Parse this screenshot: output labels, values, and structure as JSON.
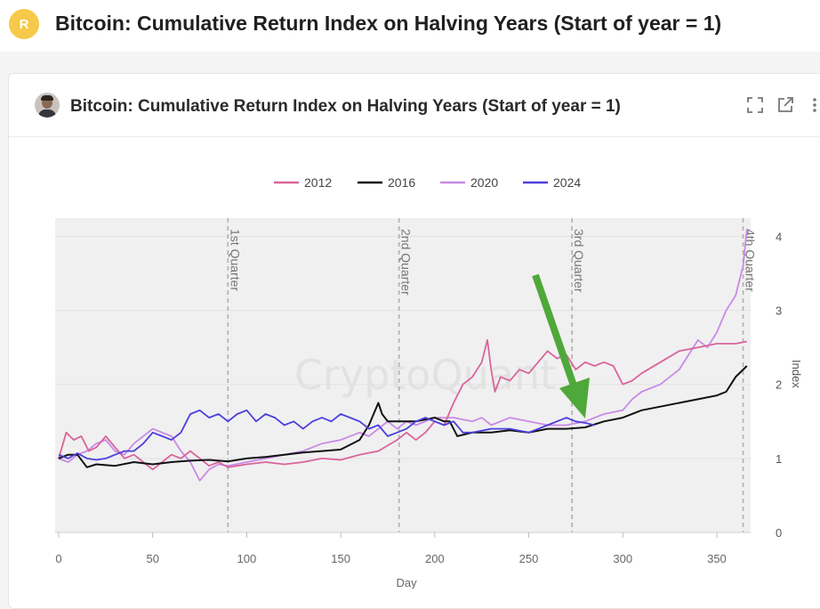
{
  "page": {
    "title": "Bitcoin: Cumulative Return Index on Halving Years (Start of year = 1)",
    "avatar_letter": "R"
  },
  "card": {
    "title": "Bitcoin: Cumulative Return Index on Halving Years (Start of year = 1)",
    "icons": [
      "fullscreen-icon",
      "open-external-icon",
      "more-icon"
    ]
  },
  "colors": {
    "2012": "#d9649b",
    "2016": "#111111",
    "2020": "#c98ae6",
    "2024": "#4b3fe0",
    "arrow": "#4fa83a",
    "plot_bg": "#f0f0f0"
  },
  "chart_data": {
    "type": "line",
    "xlabel": "Day",
    "ylabel": "Index",
    "xlim": [
      0,
      368
    ],
    "ylim": [
      0,
      4.15
    ],
    "x_ticks": [
      0,
      50,
      100,
      150,
      200,
      250,
      300,
      350
    ],
    "y_ticks": [
      0,
      1,
      2,
      3,
      4
    ],
    "watermark": "CryptoQuant",
    "legend": {
      "position": "top-center"
    },
    "quarter_lines": [
      {
        "x": 90,
        "label": "1st Quarter"
      },
      {
        "x": 181,
        "label": "2nd Quarter"
      },
      {
        "x": 273,
        "label": "3rd Quarter"
      },
      {
        "x": 364,
        "label": "4th Quarter"
      }
    ],
    "series": [
      {
        "name": "2012",
        "points": [
          [
            0,
            1.0
          ],
          [
            4,
            1.35
          ],
          [
            8,
            1.25
          ],
          [
            12,
            1.3
          ],
          [
            16,
            1.1
          ],
          [
            20,
            1.15
          ],
          [
            25,
            1.3
          ],
          [
            30,
            1.15
          ],
          [
            35,
            1.0
          ],
          [
            40,
            1.05
          ],
          [
            45,
            0.95
          ],
          [
            50,
            0.85
          ],
          [
            55,
            0.95
          ],
          [
            60,
            1.05
          ],
          [
            65,
            1.0
          ],
          [
            70,
            1.1
          ],
          [
            75,
            1.0
          ],
          [
            80,
            0.9
          ],
          [
            85,
            0.95
          ],
          [
            90,
            0.88
          ],
          [
            100,
            0.92
          ],
          [
            110,
            0.95
          ],
          [
            120,
            0.92
          ],
          [
            130,
            0.95
          ],
          [
            140,
            1.0
          ],
          [
            150,
            0.98
          ],
          [
            160,
            1.05
          ],
          [
            170,
            1.1
          ],
          [
            180,
            1.25
          ],
          [
            185,
            1.35
          ],
          [
            190,
            1.25
          ],
          [
            195,
            1.35
          ],
          [
            200,
            1.5
          ],
          [
            205,
            1.45
          ],
          [
            210,
            1.75
          ],
          [
            215,
            2.0
          ],
          [
            220,
            2.1
          ],
          [
            225,
            2.3
          ],
          [
            228,
            2.6
          ],
          [
            230,
            2.2
          ],
          [
            232,
            1.9
          ],
          [
            235,
            2.1
          ],
          [
            240,
            2.05
          ],
          [
            245,
            2.2
          ],
          [
            250,
            2.15
          ],
          [
            255,
            2.3
          ],
          [
            260,
            2.45
          ],
          [
            265,
            2.35
          ],
          [
            270,
            2.4
          ],
          [
            275,
            2.2
          ],
          [
            280,
            2.3
          ],
          [
            285,
            2.25
          ],
          [
            290,
            2.3
          ],
          [
            295,
            2.25
          ],
          [
            300,
            2.0
          ],
          [
            305,
            2.05
          ],
          [
            310,
            2.15
          ],
          [
            320,
            2.3
          ],
          [
            330,
            2.45
          ],
          [
            340,
            2.5
          ],
          [
            350,
            2.55
          ],
          [
            360,
            2.55
          ],
          [
            366,
            2.58
          ]
        ]
      },
      {
        "name": "2016",
        "points": [
          [
            0,
            1.0
          ],
          [
            5,
            1.05
          ],
          [
            10,
            1.05
          ],
          [
            15,
            0.88
          ],
          [
            20,
            0.92
          ],
          [
            30,
            0.9
          ],
          [
            40,
            0.95
          ],
          [
            50,
            0.92
          ],
          [
            60,
            0.95
          ],
          [
            70,
            0.97
          ],
          [
            80,
            0.98
          ],
          [
            90,
            0.96
          ],
          [
            100,
            1.0
          ],
          [
            110,
            1.02
          ],
          [
            120,
            1.05
          ],
          [
            130,
            1.08
          ],
          [
            140,
            1.1
          ],
          [
            150,
            1.12
          ],
          [
            160,
            1.25
          ],
          [
            165,
            1.45
          ],
          [
            170,
            1.75
          ],
          [
            172,
            1.6
          ],
          [
            175,
            1.5
          ],
          [
            180,
            1.5
          ],
          [
            190,
            1.5
          ],
          [
            200,
            1.55
          ],
          [
            205,
            1.5
          ],
          [
            208,
            1.5
          ],
          [
            212,
            1.3
          ],
          [
            220,
            1.35
          ],
          [
            230,
            1.35
          ],
          [
            240,
            1.38
          ],
          [
            250,
            1.35
          ],
          [
            260,
            1.4
          ],
          [
            270,
            1.4
          ],
          [
            280,
            1.42
          ],
          [
            290,
            1.5
          ],
          [
            300,
            1.55
          ],
          [
            310,
            1.65
          ],
          [
            320,
            1.7
          ],
          [
            330,
            1.75
          ],
          [
            340,
            1.8
          ],
          [
            350,
            1.85
          ],
          [
            355,
            1.9
          ],
          [
            360,
            2.1
          ],
          [
            366,
            2.25
          ]
        ]
      },
      {
        "name": "2020",
        "points": [
          [
            0,
            1.0
          ],
          [
            5,
            0.95
          ],
          [
            10,
            1.05
          ],
          [
            15,
            1.1
          ],
          [
            20,
            1.2
          ],
          [
            25,
            1.25
          ],
          [
            30,
            1.1
          ],
          [
            35,
            1.05
          ],
          [
            40,
            1.2
          ],
          [
            45,
            1.3
          ],
          [
            50,
            1.4
          ],
          [
            55,
            1.35
          ],
          [
            60,
            1.3
          ],
          [
            65,
            1.1
          ],
          [
            70,
            0.95
          ],
          [
            75,
            0.7
          ],
          [
            80,
            0.85
          ],
          [
            85,
            0.92
          ],
          [
            90,
            0.9
          ],
          [
            100,
            0.95
          ],
          [
            110,
            1.0
          ],
          [
            120,
            1.05
          ],
          [
            130,
            1.1
          ],
          [
            140,
            1.2
          ],
          [
            150,
            1.25
          ],
          [
            155,
            1.3
          ],
          [
            160,
            1.35
          ],
          [
            165,
            1.3
          ],
          [
            170,
            1.4
          ],
          [
            175,
            1.5
          ],
          [
            180,
            1.4
          ],
          [
            185,
            1.5
          ],
          [
            190,
            1.45
          ],
          [
            200,
            1.55
          ],
          [
            210,
            1.55
          ],
          [
            220,
            1.5
          ],
          [
            225,
            1.55
          ],
          [
            230,
            1.45
          ],
          [
            240,
            1.55
          ],
          [
            250,
            1.5
          ],
          [
            260,
            1.45
          ],
          [
            270,
            1.45
          ],
          [
            280,
            1.5
          ],
          [
            290,
            1.6
          ],
          [
            300,
            1.65
          ],
          [
            305,
            1.8
          ],
          [
            310,
            1.9
          ],
          [
            320,
            2.0
          ],
          [
            330,
            2.2
          ],
          [
            340,
            2.6
          ],
          [
            345,
            2.5
          ],
          [
            350,
            2.7
          ],
          [
            355,
            3.0
          ],
          [
            360,
            3.2
          ],
          [
            364,
            3.6
          ],
          [
            366,
            4.1
          ]
        ]
      },
      {
        "name": "2024",
        "points": [
          [
            0,
            1.05
          ],
          [
            5,
            1.0
          ],
          [
            10,
            1.07
          ],
          [
            15,
            1.0
          ],
          [
            20,
            0.98
          ],
          [
            25,
            1.0
          ],
          [
            30,
            1.05
          ],
          [
            35,
            1.1
          ],
          [
            40,
            1.1
          ],
          [
            45,
            1.2
          ],
          [
            50,
            1.35
          ],
          [
            55,
            1.3
          ],
          [
            60,
            1.25
          ],
          [
            65,
            1.35
          ],
          [
            70,
            1.6
          ],
          [
            75,
            1.65
          ],
          [
            80,
            1.55
          ],
          [
            85,
            1.6
          ],
          [
            90,
            1.5
          ],
          [
            95,
            1.6
          ],
          [
            100,
            1.65
          ],
          [
            105,
            1.5
          ],
          [
            110,
            1.6
          ],
          [
            115,
            1.55
          ],
          [
            120,
            1.45
          ],
          [
            125,
            1.5
          ],
          [
            130,
            1.4
          ],
          [
            135,
            1.5
          ],
          [
            140,
            1.55
          ],
          [
            145,
            1.5
          ],
          [
            150,
            1.6
          ],
          [
            155,
            1.55
          ],
          [
            160,
            1.5
          ],
          [
            165,
            1.4
          ],
          [
            170,
            1.45
          ],
          [
            175,
            1.3
          ],
          [
            180,
            1.35
          ],
          [
            185,
            1.4
          ],
          [
            190,
            1.5
          ],
          [
            195,
            1.55
          ],
          [
            200,
            1.5
          ],
          [
            205,
            1.45
          ],
          [
            210,
            1.5
          ],
          [
            215,
            1.35
          ],
          [
            220,
            1.35
          ],
          [
            230,
            1.4
          ],
          [
            240,
            1.4
          ],
          [
            250,
            1.35
          ],
          [
            260,
            1.45
          ],
          [
            270,
            1.55
          ],
          [
            275,
            1.5
          ],
          [
            280,
            1.48
          ],
          [
            285,
            1.45
          ]
        ]
      }
    ]
  }
}
